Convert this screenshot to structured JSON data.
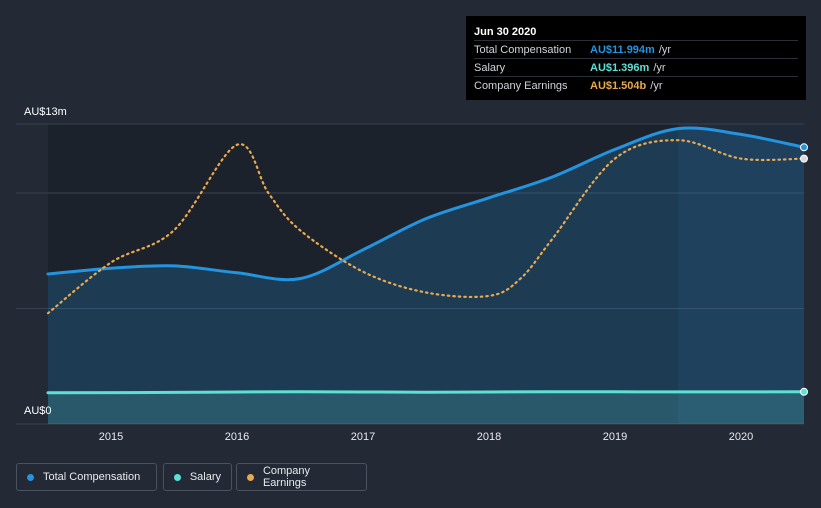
{
  "chart_data": {
    "type": "area",
    "title": "",
    "xlabel": "",
    "ylabel": "",
    "ylim": [
      0,
      13
    ],
    "y_unit": "AU$m",
    "y_tick_labels": [
      "AU$13m",
      "AU$0"
    ],
    "x_tick_labels": [
      "2015",
      "2016",
      "2017",
      "2018",
      "2019",
      "2020"
    ],
    "x_tick_values": [
      2015,
      2016,
      2017,
      2018,
      2019,
      2020
    ],
    "xlim": [
      2014.5,
      2020.5
    ],
    "grid": true,
    "legend_position": "bottom-left",
    "series": [
      {
        "name": "Total Compensation",
        "color": "#2394df",
        "style": "solid-area",
        "x": [
          2014.5,
          2015.0,
          2015.5,
          2016.0,
          2016.5,
          2017.0,
          2017.5,
          2018.0,
          2018.5,
          2019.0,
          2019.5,
          2020.0,
          2020.5
        ],
        "values": [
          6.5,
          6.75,
          6.85,
          6.55,
          6.3,
          7.55,
          8.9,
          9.8,
          10.7,
          11.9,
          12.8,
          12.55,
          11.99
        ]
      },
      {
        "name": "Salary",
        "color": "#5ee0d4",
        "style": "solid-area",
        "x": [
          2014.5,
          2015.5,
          2016.5,
          2017.5,
          2018.5,
          2019.5,
          2020.5
        ],
        "values": [
          1.35,
          1.37,
          1.4,
          1.38,
          1.4,
          1.39,
          1.396
        ]
      },
      {
        "name": "Company Earnings",
        "color": "#e8a94f",
        "style": "dotted",
        "x": [
          2014.5,
          2015.0,
          2015.5,
          2016.0,
          2016.25,
          2016.5,
          2017.0,
          2017.5,
          2018.0,
          2018.25,
          2018.5,
          2019.0,
          2019.5,
          2020.0,
          2020.5
        ],
        "values": [
          4.8,
          7.0,
          8.4,
          12.1,
          10.0,
          8.4,
          6.6,
          5.7,
          5.55,
          6.3,
          8.0,
          11.5,
          12.3,
          11.5,
          11.5
        ]
      }
    ],
    "tooltip": {
      "date": "Jun 30 2020",
      "rows": [
        {
          "label": "Total Compensation",
          "value": "AU$11.994m",
          "unit": "/yr",
          "color": "#2394df"
        },
        {
          "label": "Salary",
          "value": "AU$1.396m",
          "unit": "/yr",
          "color": "#5ee0d4"
        },
        {
          "label": "Company Earnings",
          "value": "AU$1.504b",
          "unit": "/yr",
          "color": "#e8a94f"
        }
      ]
    }
  }
}
